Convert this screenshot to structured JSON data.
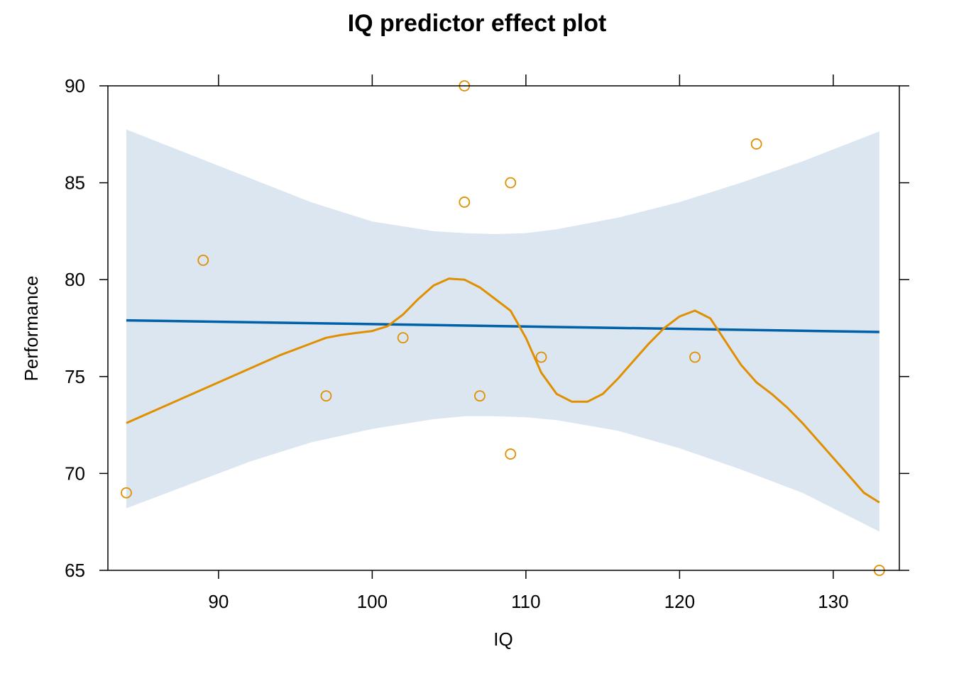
{
  "chart_data": {
    "type": "scatter",
    "title": "IQ predictor effect plot",
    "xlabel": "IQ",
    "ylabel": "Performance",
    "xlim": [
      82.8,
      134.3
    ],
    "ylim": [
      65,
      90
    ],
    "xticks": [
      90,
      100,
      110,
      120,
      130
    ],
    "yticks": [
      65,
      70,
      75,
      80,
      85,
      90
    ],
    "grid": false,
    "colors": {
      "points": "#E08F00",
      "smooth": "#E08F00",
      "fit": "#0060A8",
      "band": "#DCE6F0",
      "axis": "#000000"
    },
    "points": [
      {
        "x": 84,
        "y": 69
      },
      {
        "x": 89,
        "y": 81
      },
      {
        "x": 97,
        "y": 74
      },
      {
        "x": 102,
        "y": 77
      },
      {
        "x": 106,
        "y": 90
      },
      {
        "x": 106,
        "y": 84
      },
      {
        "x": 107,
        "y": 74
      },
      {
        "x": 109,
        "y": 85
      },
      {
        "x": 109,
        "y": 71
      },
      {
        "x": 111,
        "y": 76
      },
      {
        "x": 121,
        "y": 76
      },
      {
        "x": 125,
        "y": 87
      },
      {
        "x": 133,
        "y": 65
      }
    ],
    "fit_line": {
      "x": [
        84,
        133
      ],
      "y": [
        77.9,
        77.3
      ]
    },
    "confidence_band": {
      "x": [
        84,
        88,
        92,
        96,
        100,
        104,
        106,
        108,
        110,
        112,
        116,
        120,
        124,
        128,
        133
      ],
      "upper": [
        87.75,
        86.5,
        85.25,
        84.0,
        83.0,
        82.5,
        82.4,
        82.35,
        82.4,
        82.6,
        83.2,
        84.0,
        85.0,
        86.1,
        87.65
      ],
      "lower": [
        68.2,
        69.4,
        70.6,
        71.6,
        72.3,
        72.8,
        72.95,
        72.95,
        72.9,
        72.75,
        72.2,
        71.3,
        70.2,
        69.0,
        67.0
      ]
    },
    "smooth_line": {
      "x": [
        84,
        86,
        88,
        90,
        92,
        94,
        96,
        97,
        98,
        99,
        100,
        101,
        102,
        103,
        104,
        105,
        106,
        107,
        108,
        109,
        110,
        111,
        112,
        113,
        114,
        115,
        116,
        117,
        118,
        119,
        120,
        121,
        122,
        123,
        124,
        125,
        126,
        127,
        128,
        129,
        130,
        131,
        132,
        133
      ],
      "y": [
        72.6,
        73.3,
        74.0,
        74.7,
        75.4,
        76.1,
        76.7,
        77.0,
        77.15,
        77.25,
        77.35,
        77.6,
        78.2,
        79.0,
        79.7,
        80.05,
        80.0,
        79.6,
        79.0,
        78.4,
        77.0,
        75.2,
        74.1,
        73.7,
        73.7,
        74.1,
        74.9,
        75.8,
        76.7,
        77.5,
        78.1,
        78.4,
        78.0,
        76.8,
        75.6,
        74.7,
        74.1,
        73.4,
        72.6,
        71.7,
        70.8,
        69.9,
        69.0,
        68.5
      ]
    }
  }
}
